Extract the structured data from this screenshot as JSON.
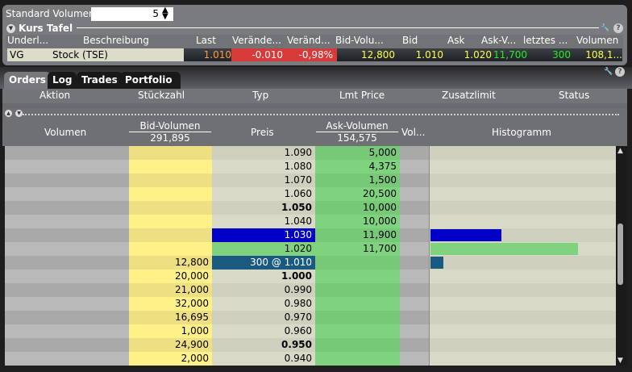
{
  "settings": {
    "standard_volume_label": "Standard Volumen",
    "standard_volume_value": "5"
  },
  "quote_board": {
    "title": "Kurs Tafel",
    "columns": [
      "Underl...",
      "Beschreibung",
      "Last",
      "Verände...",
      "Veränd...",
      "Bid-Volu...",
      "Bid",
      "Ask",
      "Ask-V...",
      "letztes ...",
      "Volumen"
    ],
    "row": {
      "underlying": "VG",
      "description": "Stock (TSE)",
      "last": "1.010",
      "change": "-0.010",
      "change_pct": "-0,98%",
      "bid_volume": "12,800",
      "bid": "1.010",
      "ask": "1.020",
      "ask_volume": "11,700",
      "last_size": "300",
      "volume": "108,1..."
    }
  },
  "tabs": [
    {
      "label": "Orders",
      "active": true
    },
    {
      "label": "Log"
    },
    {
      "label": "Trades"
    },
    {
      "label": "Portfolio"
    }
  ],
  "orders_columns": [
    "Aktion",
    "Stückzahl",
    "Typ",
    "Lmt Price",
    "Zusatzlimit",
    "Status"
  ],
  "ladder": {
    "headers": {
      "volume": "Volumen",
      "bid_volume": "Bid-Volumen",
      "bid_total": "291,895",
      "price": "Preis",
      "ask_volume": "Ask-Volumen",
      "ask_total": "154,575",
      "vol": "Vol...",
      "histogram": "Histogramm"
    },
    "rows": [
      {
        "bid": "",
        "price": "1.090",
        "ask": "5,000",
        "bold": false
      },
      {
        "bid": "",
        "price": "1.080",
        "ask": "4,375",
        "bold": false
      },
      {
        "bid": "",
        "price": "1.070",
        "ask": "1,500",
        "bold": false
      },
      {
        "bid": "",
        "price": "1.060",
        "ask": "20,500",
        "bold": false
      },
      {
        "bid": "",
        "price": "1.050",
        "ask": "10,000",
        "bold": true
      },
      {
        "bid": "",
        "price": "1.040",
        "ask": "10,000",
        "bold": false
      },
      {
        "bid": "",
        "price": "1.030",
        "ask": "11,900",
        "bold": false,
        "price_bg": "#0000c8",
        "hist": 0.38,
        "hist_color": "#0000c8"
      },
      {
        "bid": "",
        "price": "1.020",
        "ask": "11,700",
        "bold": false,
        "price_bg": "#7fd37f",
        "hist": 0.79,
        "hist_color": "#7fd37f"
      },
      {
        "bid": "12,800",
        "price": "300 @ 1.010",
        "ask": "",
        "bold": false,
        "price_bg": "#1a5a80",
        "hist": 0.07,
        "hist_color": "#1a5a80"
      },
      {
        "bid": "20,000",
        "price": "1.000",
        "ask": "",
        "bold": true
      },
      {
        "bid": "21,000",
        "price": "0.990",
        "ask": "",
        "bold": false
      },
      {
        "bid": "32,000",
        "price": "0.980",
        "ask": "",
        "bold": false
      },
      {
        "bid": "16,695",
        "price": "0.970",
        "ask": "",
        "bold": false
      },
      {
        "bid": "1,000",
        "price": "0.960",
        "ask": "",
        "bold": false
      },
      {
        "bid": "24,900",
        "price": "0.950",
        "ask": "",
        "bold": true
      },
      {
        "bid": "2,000",
        "price": "0.940",
        "ask": "",
        "bold": false
      }
    ]
  },
  "colors": {
    "bid": "#fff088",
    "ask": "#7fd37f",
    "price": "#d9d9c8",
    "change_neg": "#d83a3a",
    "last": "#ff9a3a",
    "yellow": "#ffff40",
    "green": "#22ee22"
  }
}
